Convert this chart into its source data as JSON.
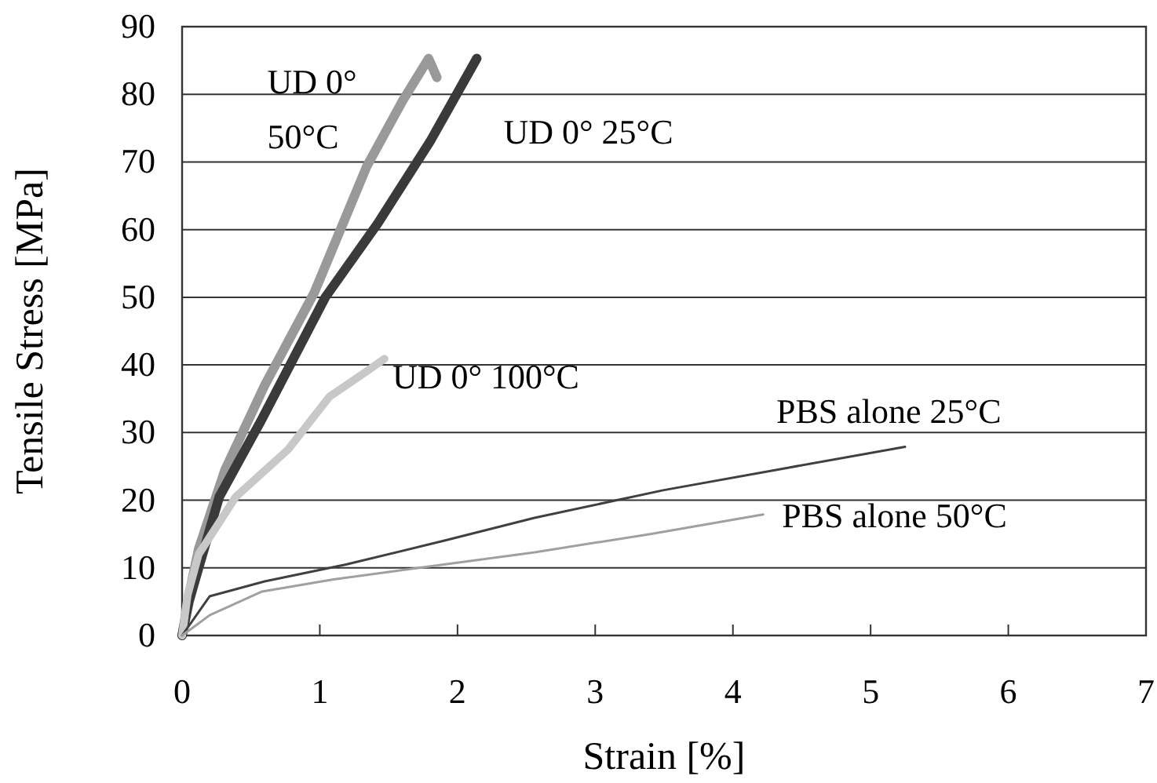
{
  "chart_data": {
    "type": "line",
    "xlabel": "Strain [%]",
    "ylabel": "Tensile Stress [MPa]",
    "xlim": [
      0,
      7
    ],
    "xticks": [
      0,
      1,
      2,
      3,
      4,
      5,
      6,
      7
    ],
    "ylim": [
      0,
      90
    ],
    "yticks": [
      0,
      10,
      20,
      30,
      40,
      50,
      60,
      70,
      80,
      90
    ],
    "grid": "y",
    "marker": "none",
    "line_style": "solid",
    "series": [
      {
        "name": "UD 0° 50°C",
        "color": "#999999",
        "x": [
          0,
          0.05,
          0.12,
          0.31,
          0.6,
          0.96,
          1.34,
          1.6,
          1.79,
          1.85
        ],
        "values": [
          0,
          6,
          12.8,
          24.4,
          37,
          50.7,
          69.3,
          79,
          85.3,
          82.5
        ]
      },
      {
        "name": "UD 0° 25°C",
        "color": "#3a3a3a",
        "x": [
          0,
          0.05,
          0.12,
          0.27,
          0.58,
          1.04,
          1.42,
          1.8,
          2.14
        ],
        "values": [
          0,
          5,
          10,
          20.5,
          32,
          50,
          60.9,
          73,
          85.3
        ]
      },
      {
        "name": "UD 0° 100°C",
        "color": "#c8c8c8",
        "x": [
          0,
          0.04,
          0.12,
          0.39,
          0.77,
          1.07,
          1.3,
          1.47
        ],
        "values": [
          0,
          6,
          12,
          20.5,
          27.5,
          35.3,
          38.5,
          40.9
        ]
      },
      {
        "name": "PBS alone 25°C",
        "color": "#404040",
        "x": [
          0,
          0.2,
          0.6,
          1.19,
          1.9,
          2.56,
          3.5,
          4.4,
          5.25
        ],
        "values": [
          0,
          5.8,
          8,
          10.5,
          14,
          17.4,
          21.5,
          24.8,
          27.9
        ]
      },
      {
        "name": "PBS alone 50°C",
        "color": "#a0a0a0",
        "x": [
          0,
          0.2,
          0.58,
          1.1,
          1.72,
          2.56,
          3.4,
          4.22
        ],
        "values": [
          0,
          3,
          6.5,
          8.3,
          10,
          12.3,
          15,
          17.9
        ]
      }
    ]
  }
}
